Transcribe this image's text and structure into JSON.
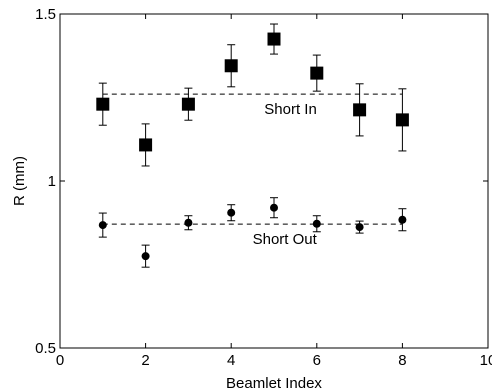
{
  "chart_data": {
    "type": "scatter",
    "title": "",
    "xlabel": "Beamlet Index",
    "ylabel": "R (mm)",
    "xlim": [
      0,
      10
    ],
    "ylim": [
      0.5,
      1.5
    ],
    "x_ticks": [
      0,
      2,
      4,
      6,
      8,
      10
    ],
    "y_ticks": [
      0.5,
      1,
      1.5
    ],
    "x_tick_labels": [
      "0",
      "2",
      "4",
      "6",
      "8",
      "10"
    ],
    "y_tick_labels": [
      "0.5",
      "1",
      "1.5"
    ],
    "grid": false,
    "series": [
      {
        "name": "Short In",
        "marker": "square",
        "color": "#000000",
        "points": [
          {
            "x": 1,
            "y": 1.23,
            "err": 0.063
          },
          {
            "x": 2,
            "y": 1.108,
            "err": 0.063
          },
          {
            "x": 3,
            "y": 1.23,
            "err": 0.048
          },
          {
            "x": 4,
            "y": 1.345,
            "err": 0.063
          },
          {
            "x": 5,
            "y": 1.425,
            "err": 0.045
          },
          {
            "x": 6,
            "y": 1.323,
            "err": 0.054
          },
          {
            "x": 7,
            "y": 1.213,
            "err": 0.078
          },
          {
            "x": 8,
            "y": 1.183,
            "err": 0.093
          }
        ],
        "mean": 1.26
      },
      {
        "name": "Short Out",
        "marker": "circle",
        "color": "#000000",
        "points": [
          {
            "x": 1,
            "y": 0.868,
            "err": 0.036
          },
          {
            "x": 2,
            "y": 0.775,
            "err": 0.033
          },
          {
            "x": 3,
            "y": 0.875,
            "err": 0.021
          },
          {
            "x": 4,
            "y": 0.905,
            "err": 0.024
          },
          {
            "x": 5,
            "y": 0.92,
            "err": 0.03
          },
          {
            "x": 6,
            "y": 0.872,
            "err": 0.024
          },
          {
            "x": 7,
            "y": 0.862,
            "err": 0.018
          },
          {
            "x": 8,
            "y": 0.884,
            "err": 0.033
          }
        ],
        "mean": 0.871
      }
    ],
    "annotations": [
      {
        "text": "Short In",
        "series": "Short In"
      },
      {
        "text": "Short Out",
        "series": "Short Out"
      }
    ]
  }
}
